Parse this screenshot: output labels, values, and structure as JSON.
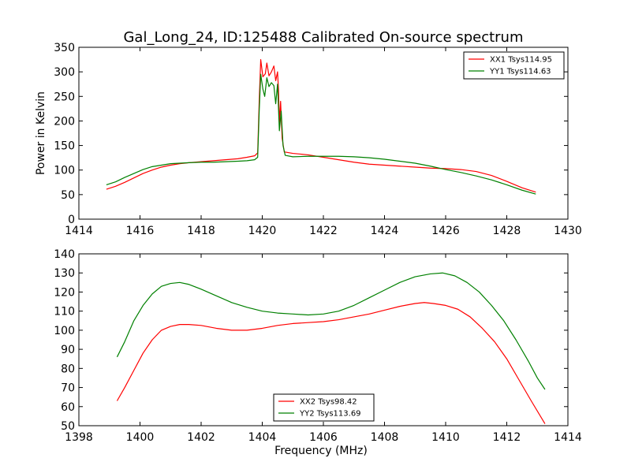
{
  "title": "Gal_Long_24, ID:125488 Calibrated On-source spectrum",
  "chart_data": [
    {
      "type": "line",
      "xlabel": "",
      "ylabel": "Power in Kelvin",
      "xlim": [
        1414,
        1430
      ],
      "ylim": [
        0,
        350
      ],
      "xticks": [
        "1414",
        "1416",
        "1418",
        "1420",
        "1422",
        "1424",
        "1426",
        "1428",
        "1430"
      ],
      "yticks": [
        "0",
        "50",
        "100",
        "150",
        "200",
        "250",
        "300",
        "350"
      ],
      "grid": false,
      "legend_position": "top-right",
      "series": [
        {
          "name": "XX1 Tsys114.95",
          "color": "#ff0000",
          "points": [
            [
              1414.9,
              61
            ],
            [
              1415.2,
              67
            ],
            [
              1415.5,
              75
            ],
            [
              1415.8,
              84
            ],
            [
              1416.1,
              93
            ],
            [
              1416.4,
              100
            ],
            [
              1416.7,
              106
            ],
            [
              1417.0,
              110
            ],
            [
              1417.3,
              113
            ],
            [
              1417.6,
              115
            ],
            [
              1418.0,
              117
            ],
            [
              1418.4,
              119
            ],
            [
              1418.8,
              121
            ],
            [
              1419.2,
              123
            ],
            [
              1419.5,
              126
            ],
            [
              1419.75,
              129
            ],
            [
              1419.85,
              135
            ],
            [
              1419.9,
              240
            ],
            [
              1419.95,
              325
            ],
            [
              1420.02,
              290
            ],
            [
              1420.1,
              296
            ],
            [
              1420.15,
              318
            ],
            [
              1420.22,
              292
            ],
            [
              1420.3,
              300
            ],
            [
              1420.38,
              312
            ],
            [
              1420.44,
              282
            ],
            [
              1420.5,
              300
            ],
            [
              1420.53,
              265
            ],
            [
              1420.56,
              195
            ],
            [
              1420.6,
              240
            ],
            [
              1420.65,
              165
            ],
            [
              1420.72,
              137
            ],
            [
              1421.0,
              134
            ],
            [
              1421.5,
              131
            ],
            [
              1422.0,
              126
            ],
            [
              1422.5,
              121
            ],
            [
              1423.0,
              116
            ],
            [
              1423.5,
              112
            ],
            [
              1424.0,
              110
            ],
            [
              1424.5,
              108
            ],
            [
              1425.0,
              106
            ],
            [
              1425.5,
              104
            ],
            [
              1426.0,
              103
            ],
            [
              1426.5,
              101
            ],
            [
              1427.0,
              97
            ],
            [
              1427.5,
              89
            ],
            [
              1428.0,
              77
            ],
            [
              1428.5,
              64
            ],
            [
              1428.95,
              55
            ]
          ]
        },
        {
          "name": "YY1 Tsys114.63",
          "color": "#008000",
          "points": [
            [
              1414.9,
              70
            ],
            [
              1415.2,
              76
            ],
            [
              1415.5,
              85
            ],
            [
              1415.8,
              93
            ],
            [
              1416.1,
              101
            ],
            [
              1416.4,
              107
            ],
            [
              1416.7,
              110
            ],
            [
              1417.0,
              113
            ],
            [
              1417.3,
              114
            ],
            [
              1417.6,
              115
            ],
            [
              1418.0,
              116
            ],
            [
              1418.4,
              116
            ],
            [
              1418.8,
              117
            ],
            [
              1419.2,
              118
            ],
            [
              1419.5,
              119
            ],
            [
              1419.75,
              121
            ],
            [
              1419.85,
              126
            ],
            [
              1419.9,
              220
            ],
            [
              1419.95,
              295
            ],
            [
              1420.02,
              265
            ],
            [
              1420.08,
              250
            ],
            [
              1420.15,
              288
            ],
            [
              1420.22,
              270
            ],
            [
              1420.3,
              278
            ],
            [
              1420.38,
              272
            ],
            [
              1420.44,
              235
            ],
            [
              1420.5,
              275
            ],
            [
              1420.56,
              180
            ],
            [
              1420.62,
              220
            ],
            [
              1420.68,
              150
            ],
            [
              1420.75,
              130
            ],
            [
              1421.0,
              127
            ],
            [
              1421.5,
              128
            ],
            [
              1422.0,
              128
            ],
            [
              1422.5,
              128
            ],
            [
              1423.0,
              127
            ],
            [
              1423.5,
              125
            ],
            [
              1424.0,
              122
            ],
            [
              1424.5,
              118
            ],
            [
              1425.0,
              114
            ],
            [
              1425.5,
              108
            ],
            [
              1426.0,
              101
            ],
            [
              1426.5,
              95
            ],
            [
              1427.0,
              88
            ],
            [
              1427.5,
              80
            ],
            [
              1428.0,
              70
            ],
            [
              1428.5,
              59
            ],
            [
              1428.95,
              51
            ]
          ]
        }
      ]
    },
    {
      "type": "line",
      "xlabel": "Frequency (MHz)",
      "ylabel": "",
      "xlim": [
        1398,
        1414
      ],
      "ylim": [
        50,
        140
      ],
      "xticks": [
        "1398",
        "1400",
        "1402",
        "1404",
        "1406",
        "1408",
        "1410",
        "1412",
        "1414"
      ],
      "yticks": [
        "50",
        "60",
        "70",
        "80",
        "90",
        "100",
        "110",
        "120",
        "130",
        "140"
      ],
      "grid": false,
      "legend_position": "bottom-center",
      "series": [
        {
          "name": "XX2 Tsys98.42",
          "color": "#ff0000",
          "points": [
            [
              1399.25,
              63
            ],
            [
              1399.5,
              70
            ],
            [
              1399.8,
              79
            ],
            [
              1400.1,
              88
            ],
            [
              1400.4,
              95
            ],
            [
              1400.7,
              100
            ],
            [
              1401.0,
              102
            ],
            [
              1401.3,
              103
            ],
            [
              1401.6,
              103
            ],
            [
              1402.0,
              102.5
            ],
            [
              1402.5,
              101
            ],
            [
              1403.0,
              100
            ],
            [
              1403.5,
              100
            ],
            [
              1404.0,
              101
            ],
            [
              1404.5,
              102.5
            ],
            [
              1405.0,
              103.5
            ],
            [
              1405.5,
              104
            ],
            [
              1406.0,
              104.5
            ],
            [
              1406.5,
              105.5
            ],
            [
              1407.0,
              107
            ],
            [
              1407.5,
              108.5
            ],
            [
              1408.0,
              110.5
            ],
            [
              1408.5,
              112.5
            ],
            [
              1409.0,
              114
            ],
            [
              1409.3,
              114.5
            ],
            [
              1409.6,
              114
            ],
            [
              1410.0,
              113
            ],
            [
              1410.4,
              111
            ],
            [
              1410.8,
              107
            ],
            [
              1411.2,
              101
            ],
            [
              1411.6,
              94
            ],
            [
              1412.0,
              85
            ],
            [
              1412.4,
              74
            ],
            [
              1412.8,
              63
            ],
            [
              1413.25,
              51
            ]
          ]
        },
        {
          "name": "YY2 Tsys113.69",
          "color": "#008000",
          "points": [
            [
              1399.25,
              86
            ],
            [
              1399.5,
              94
            ],
            [
              1399.8,
              105
            ],
            [
              1400.1,
              113
            ],
            [
              1400.4,
              119
            ],
            [
              1400.7,
              123
            ],
            [
              1401.0,
              124.5
            ],
            [
              1401.3,
              125
            ],
            [
              1401.6,
              124
            ],
            [
              1402.0,
              121.5
            ],
            [
              1402.5,
              118
            ],
            [
              1403.0,
              114.5
            ],
            [
              1403.5,
              112
            ],
            [
              1404.0,
              110
            ],
            [
              1404.5,
              109
            ],
            [
              1405.0,
              108.5
            ],
            [
              1405.5,
              108
            ],
            [
              1406.0,
              108.5
            ],
            [
              1406.5,
              110
            ],
            [
              1407.0,
              113
            ],
            [
              1407.5,
              117
            ],
            [
              1408.0,
              121
            ],
            [
              1408.5,
              125
            ],
            [
              1409.0,
              128
            ],
            [
              1409.5,
              129.5
            ],
            [
              1409.9,
              130
            ],
            [
              1410.3,
              128.5
            ],
            [
              1410.7,
              125
            ],
            [
              1411.1,
              120
            ],
            [
              1411.5,
              113
            ],
            [
              1411.9,
              105
            ],
            [
              1412.3,
              95
            ],
            [
              1412.7,
              84
            ],
            [
              1413.0,
              75
            ],
            [
              1413.25,
              69
            ]
          ]
        }
      ]
    }
  ]
}
